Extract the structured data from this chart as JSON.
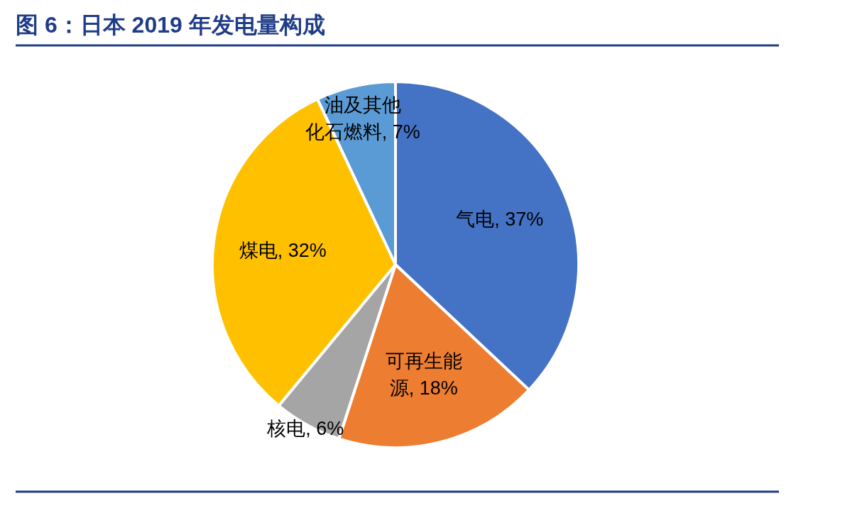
{
  "chart_data": {
    "type": "pie",
    "title": "图 6：日本 2019 年发电量构成",
    "categories": [
      "气电",
      "可再生能源",
      "核电",
      "煤电",
      "油及其他化石燃料"
    ],
    "values": [
      37,
      18,
      6,
      32,
      7
    ],
    "value_labels": [
      "37%",
      "18%",
      "6%",
      "32%",
      "7%"
    ],
    "colors": [
      "#4472c4",
      "#ed7d31",
      "#a5a5a5",
      "#ffc000",
      "#5b9bd5"
    ]
  }
}
